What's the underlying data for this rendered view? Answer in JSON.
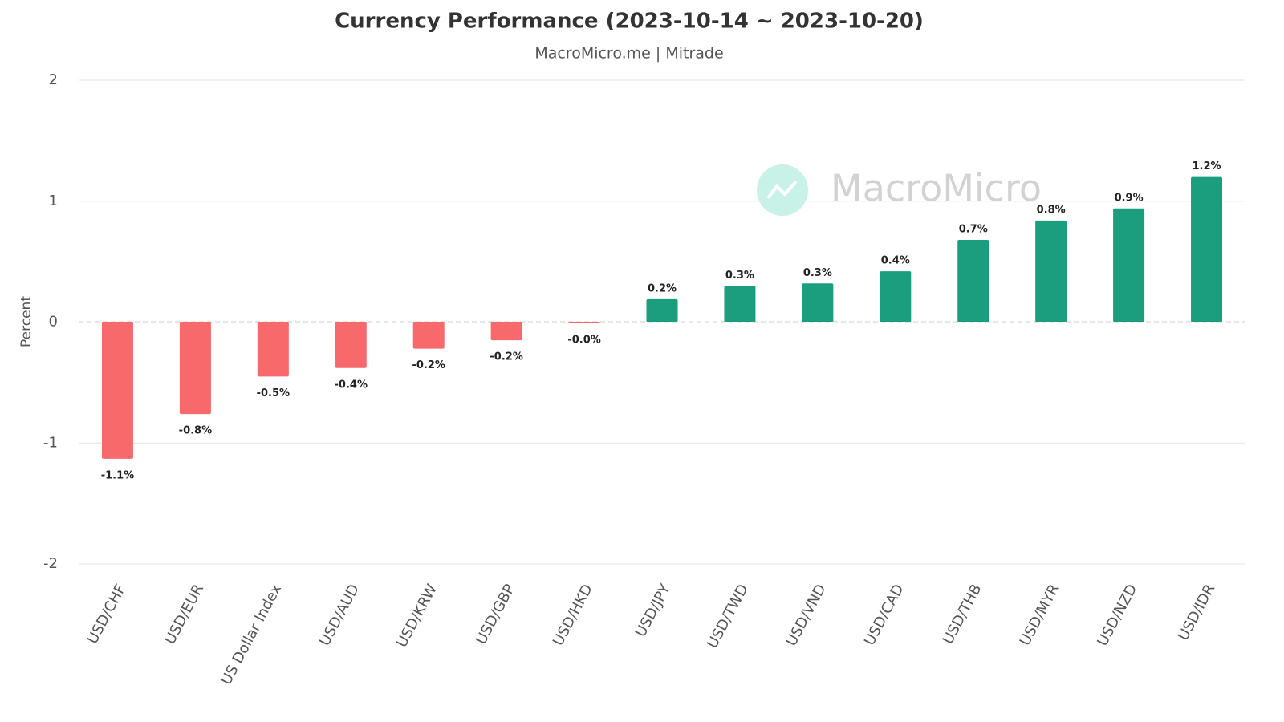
{
  "chart_data": {
    "type": "bar",
    "title": "Currency Performance (2023-10-14 ~ 2023-10-20)",
    "subtitle": "MacroMicro.me | Mitrade",
    "watermark": "MacroMicro",
    "y_label": "Percent",
    "categories": [
      "USD/CHF",
      "USD/EUR",
      "US Dollar Index",
      "USD/AUD",
      "USD/KRW",
      "USD/GBP",
      "USD/HKD",
      "USD/JPY",
      "USD/TWD",
      "USD/VND",
      "USD/CAD",
      "USD/THB",
      "USD/MYR",
      "USD/NZD",
      "USD/IDR"
    ],
    "values": [
      -1.13,
      -0.76,
      -0.45,
      -0.38,
      -0.22,
      -0.15,
      -0.01,
      0.19,
      0.3,
      0.32,
      0.42,
      0.68,
      0.84,
      0.94,
      1.2
    ],
    "value_labels": [
      "-1.1%",
      "-0.8%",
      "-0.5%",
      "-0.4%",
      "-0.2%",
      "-0.2%",
      "-0.0%",
      "0.2%",
      "0.3%",
      "0.3%",
      "0.4%",
      "0.7%",
      "0.8%",
      "0.9%",
      "1.2%"
    ],
    "color": "#1b9e7e",
    "negative_color": "#f8696b",
    "ylim": [
      -2,
      2
    ],
    "yticks": [
      -2,
      -1,
      0,
      1,
      2
    ],
    "grid": true
  }
}
